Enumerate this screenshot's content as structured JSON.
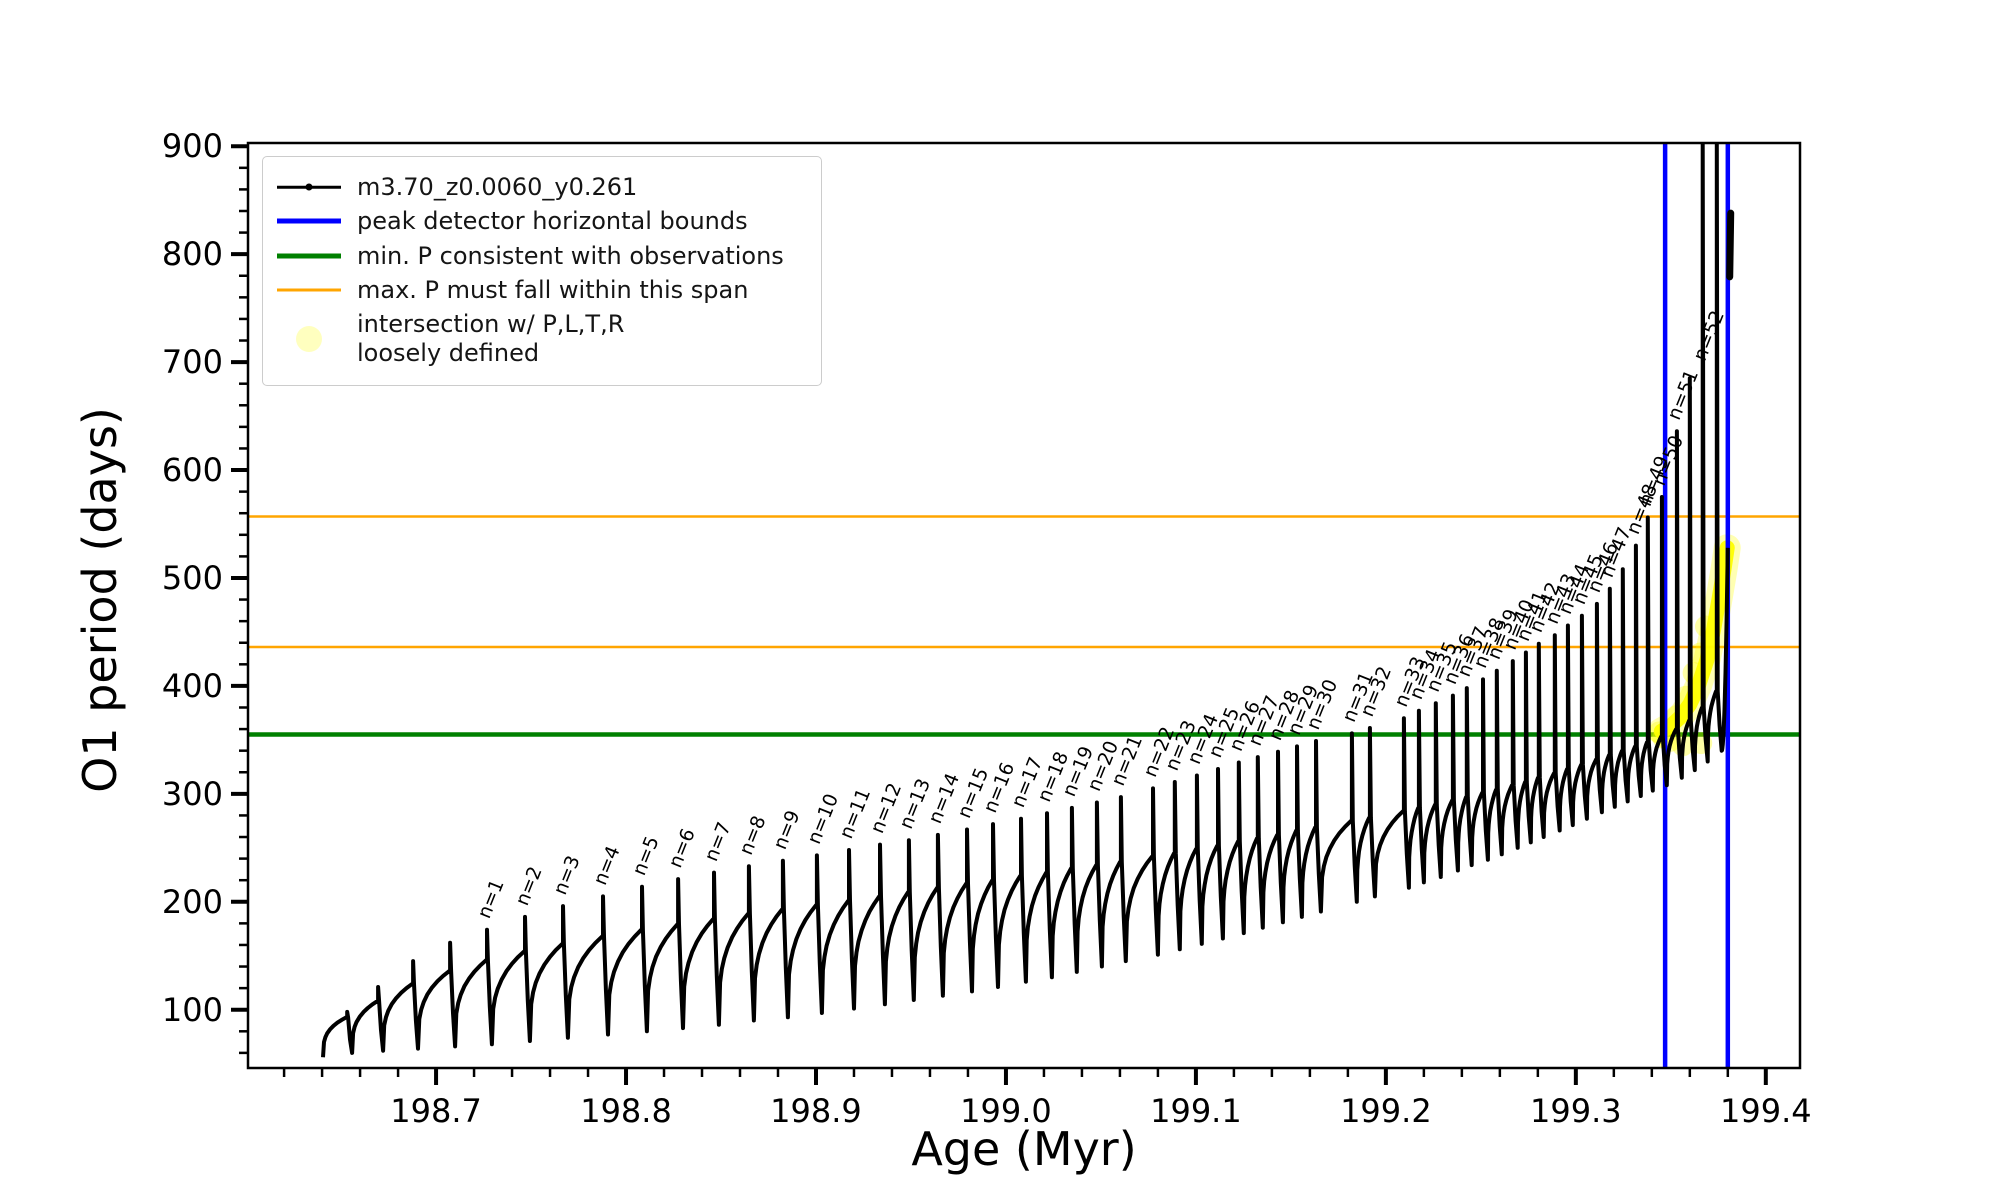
{
  "colors": {
    "series": "#000000",
    "peak_bounds": "#0000ff",
    "min_p_line": "#008000",
    "max_p_line": "#ffa500",
    "intersection": "#ffff00",
    "axis": "#000000"
  },
  "axes": {
    "xlabel": "Age (Myr)",
    "ylabel": "O1 period (days)",
    "xlim": [
      198.601,
      199.418
    ],
    "ylim": [
      46,
      903
    ],
    "xtick_values": [
      198.7,
      198.8,
      198.9,
      199.0,
      199.1,
      199.2,
      199.3,
      199.4
    ],
    "xtick_labels": [
      "198.7",
      "198.8",
      "198.9",
      "199.0",
      "199.1",
      "199.2",
      "199.3",
      "199.4"
    ],
    "ytick_values": [
      100,
      200,
      300,
      400,
      500,
      600,
      700,
      800,
      900
    ],
    "ytick_labels": [
      "100",
      "200",
      "300",
      "400",
      "500",
      "600",
      "700",
      "800",
      "900"
    ],
    "x_minor_step": 0.02,
    "y_minor_step": 20
  },
  "legend": {
    "entries": [
      {
        "label": "m3.70_z0.0060_y0.261",
        "marker": "line-dot",
        "color": "#000000"
      },
      {
        "label": "peak detector horizontal bounds",
        "marker": "line",
        "color": "#0000ff"
      },
      {
        "label": "min. P consistent with observations",
        "marker": "line",
        "color": "#008000"
      },
      {
        "label": "max. P must fall within this span",
        "marker": "line",
        "color": "#ffa500"
      },
      {
        "label": "intersection w/ P,L,T,R",
        "label2": "loosely defined",
        "marker": "dot",
        "color": "#ffff00"
      }
    ]
  },
  "annotations": {
    "peak_detector_vlines_x": [
      199.347,
      199.38
    ],
    "min_p_hline_y": 355,
    "max_p_hlines_y": [
      436,
      557
    ],
    "pulse_label_prefix": "n="
  },
  "chart_data": {
    "type": "line",
    "title": "",
    "xlabel": "Age (Myr)",
    "ylabel": "O1 period (days)",
    "series_name": "m3.70_z0.0060_y0.261",
    "track_start": {
      "x": 198.6405,
      "y": 56
    },
    "cycles_columns": [
      "n",
      "x_myr",
      "base_period",
      "peak_period",
      "dip_after"
    ],
    "cycles": [
      [
        null,
        198.6532,
        93,
        98,
        60
      ],
      [
        null,
        198.6695,
        108,
        121,
        62
      ],
      [
        null,
        198.6879,
        124,
        145,
        64
      ],
      [
        null,
        198.7074,
        136,
        162,
        66
      ],
      [
        1,
        198.7268,
        146,
        174,
        68
      ],
      [
        2,
        198.7468,
        154,
        186,
        71
      ],
      [
        3,
        198.7668,
        161,
        196,
        74
      ],
      [
        4,
        198.7879,
        168,
        205,
        77
      ],
      [
        5,
        198.8084,
        174,
        214,
        80
      ],
      [
        6,
        198.8274,
        179,
        221,
        83
      ],
      [
        7,
        198.8463,
        184,
        227,
        86
      ],
      [
        8,
        198.8647,
        189,
        233,
        90
      ],
      [
        9,
        198.8826,
        193,
        238,
        93
      ],
      [
        10,
        198.9005,
        197,
        243,
        97
      ],
      [
        11,
        198.9174,
        201,
        248,
        101
      ],
      [
        12,
        198.9337,
        205,
        253,
        105
      ],
      [
        13,
        198.9489,
        209,
        257,
        109
      ],
      [
        14,
        198.9642,
        213,
        262,
        113
      ],
      [
        15,
        198.9795,
        217,
        267,
        117
      ],
      [
        16,
        198.9932,
        220,
        272,
        121
      ],
      [
        17,
        199.0079,
        224,
        277,
        126
      ],
      [
        18,
        199.0216,
        227,
        282,
        130
      ],
      [
        19,
        199.0347,
        231,
        287,
        135
      ],
      [
        20,
        199.0479,
        234,
        292,
        140
      ],
      [
        21,
        199.0605,
        237,
        297,
        145
      ],
      [
        22,
        199.0774,
        242,
        305,
        151
      ],
      [
        23,
        199.0889,
        245,
        311,
        156
      ],
      [
        24,
        199.1005,
        249,
        317,
        161
      ],
      [
        25,
        199.1116,
        252,
        323,
        166
      ],
      [
        26,
        199.1226,
        256,
        329,
        171
      ],
      [
        27,
        199.1326,
        259,
        334,
        176
      ],
      [
        28,
        199.1432,
        262,
        339,
        181
      ],
      [
        29,
        199.1532,
        266,
        344,
        186
      ],
      [
        30,
        199.1632,
        269,
        349,
        191
      ],
      [
        31,
        199.1821,
        275,
        356,
        200
      ],
      [
        32,
        199.1916,
        278,
        361,
        205
      ],
      [
        33,
        199.2095,
        284,
        370,
        213
      ],
      [
        34,
        199.2174,
        287,
        377,
        218
      ],
      [
        35,
        199.2263,
        290,
        384,
        223
      ],
      [
        36,
        199.2353,
        294,
        391,
        229
      ],
      [
        37,
        199.2426,
        297,
        398,
        234
      ],
      [
        38,
        199.2511,
        301,
        406,
        239
      ],
      [
        39,
        199.2584,
        304,
        414,
        244
      ],
      [
        40,
        199.2668,
        308,
        423,
        250
      ],
      [
        41,
        199.2737,
        311,
        431,
        255
      ],
      [
        42,
        199.2805,
        315,
        439,
        260
      ],
      [
        43,
        199.2889,
        319,
        447,
        266
      ],
      [
        44,
        199.2958,
        323,
        456,
        271
      ],
      [
        45,
        199.3032,
        327,
        465,
        277
      ],
      [
        46,
        199.3111,
        332,
        476,
        283
      ],
      [
        47,
        199.3179,
        336,
        490,
        288
      ],
      [
        null,
        199.3247,
        340,
        508,
        293
      ],
      [
        48,
        199.3316,
        344,
        530,
        298
      ],
      [
        49,
        199.3379,
        348,
        556,
        303
      ],
      [
        50,
        199.3453,
        353,
        575,
        308
      ],
      [
        51,
        199.3532,
        360,
        636,
        315
      ],
      [
        null,
        199.36,
        368,
        685,
        322
      ],
      [
        52,
        199.3668,
        380,
        920,
        330
      ],
      [
        null,
        199.3742,
        395,
        920,
        340
      ]
    ],
    "final_rise": {
      "x0": 199.3768,
      "y0": 340,
      "x1": 199.38,
      "y1": 528
    },
    "end_segment": {
      "x": 199.381,
      "y0": 779,
      "y1": 838
    },
    "intersection_band": {
      "path": [
        [
          199.345,
          358
        ],
        [
          199.35,
          363
        ],
        [
          199.355,
          371
        ],
        [
          199.36,
          383
        ],
        [
          199.3645,
          400
        ],
        [
          199.369,
          424
        ],
        [
          199.3725,
          452
        ],
        [
          199.3755,
          482
        ],
        [
          199.378,
          508
        ],
        [
          199.3797,
          528
        ]
      ],
      "extra_points": [
        [
          199.346,
          352
        ],
        [
          199.344,
          357
        ],
        [
          199.3495,
          349
        ],
        [
          199.3563,
          345
        ],
        [
          199.366,
          347
        ],
        [
          199.353,
          372
        ],
        [
          199.358,
          390
        ],
        [
          199.362,
          412
        ],
        [
          199.3655,
          430
        ],
        [
          199.3685,
          455
        ]
      ]
    }
  }
}
